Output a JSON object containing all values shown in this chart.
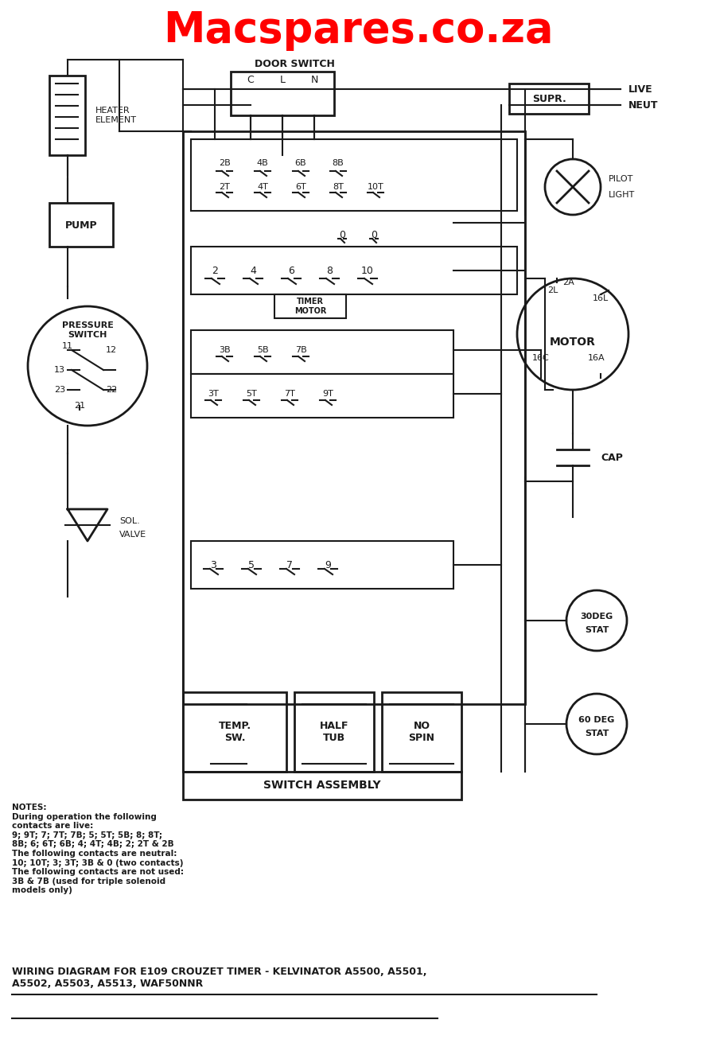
{
  "title": "Macspares.co.za",
  "title_color": "#FF0000",
  "title_fontsize": 38,
  "bg_color": "#FFFFFF",
  "diagram_color": "#1a1a1a",
  "bottom_title": "WIRING DIAGRAM FOR E109 CROUZET TIMER - KELVINATOR A5500, A5501,\nA5502, A5503, A5513, WAF50NNR",
  "notes_text": "NOTES:\nDuring operation the following\ncontacts are live:\n9; 9T; 7; 7T; 7B; 5; 5T; 5B; 8; 8T;\n8B; 6; 6T; 6B; 4; 4T; 4B; 2; 2T & 2B\nThe following contacts are neutral:\n10; 10T; 3; 3T; 3B & 0 (two contacts)\nThe following contacts are not used:\n3B & 7B (used for triple solenoid\nmodels only)"
}
